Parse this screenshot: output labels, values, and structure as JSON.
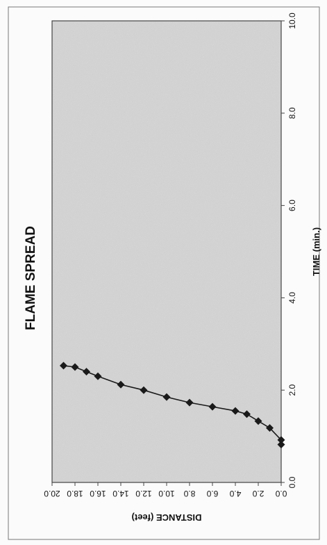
{
  "chart_data": {
    "type": "line",
    "orientation": "rotated-90-clockwise",
    "title": "FLAME SPREAD",
    "xlabel": "TIME (min.)",
    "ylabel": "DISTANCE (feet)",
    "xlim": [
      0.0,
      10.0
    ],
    "ylim": [
      0.0,
      20.0
    ],
    "x_ticks": [
      "0.0",
      "2.0",
      "4.0",
      "6.0",
      "8.0",
      "10.0"
    ],
    "y_ticks": [
      "0.0",
      "2.0",
      "4.0",
      "6.0",
      "8.0",
      "10.0",
      "12.0",
      "14.0",
      "16.0",
      "18.0",
      "20.0"
    ],
    "grid": false,
    "legend": "none",
    "series": [
      {
        "marker": "diamond",
        "color": "#1a1a1a",
        "x": [
          0.82,
          0.92,
          1.18,
          1.33,
          1.48,
          1.55,
          1.64,
          1.73,
          1.85,
          2.0,
          2.12,
          2.3,
          2.4,
          2.5,
          2.53
        ],
        "y": [
          0.0,
          0.0,
          1.0,
          2.0,
          3.0,
          4.0,
          6.0,
          8.0,
          10.0,
          12.0,
          14.0,
          16.0,
          17.0,
          18.0,
          19.0
        ]
      }
    ]
  },
  "colors": {
    "plot_background": "#cfcfcf",
    "frame": "#444444",
    "line": "#1a1a1a",
    "text": "#111111"
  }
}
